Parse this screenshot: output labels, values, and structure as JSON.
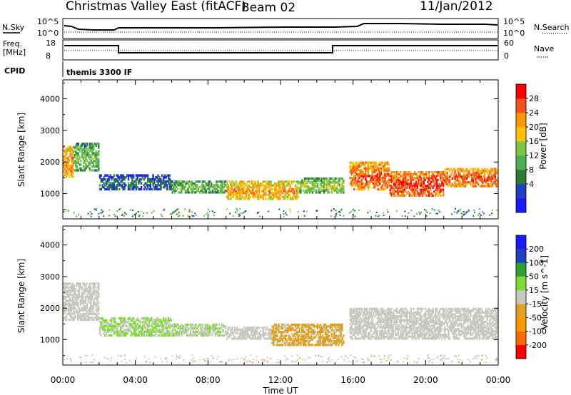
{
  "header": {
    "title": "Christmas Valley East (fitACF)",
    "beam": "Beam 02",
    "date": "11/Jan/2012"
  },
  "aux_panels": {
    "nsky_label": "N.Sky",
    "nsky_ticks": [
      "10^5",
      "10^0"
    ],
    "nsearch_label": "N.Search",
    "nsearch_ticks": [
      "10^5",
      "10^0"
    ],
    "freq_label": "Freq.",
    "freq_unit": "[MHz]",
    "freq_ticks": [
      "18",
      "8"
    ],
    "nave_label": "Nave",
    "nave_ticks": [
      "60",
      "0"
    ],
    "cpid_label": "CPID",
    "cpid_value": "themis 3300 IF"
  },
  "colors": {
    "power": [
      "#1a1aff",
      "#2040c0",
      "#2e7d32",
      "#4caf50",
      "#7cc940",
      "#ffc107",
      "#ff9800",
      "#f4511e",
      "#ff0000"
    ],
    "velocity": [
      "#ff0000",
      "#ff6a00",
      "#ff9800",
      "#e0a020",
      "#c8c8c0",
      "#7cdd30",
      "#30a030",
      "#2040c0",
      "#1a1aff"
    ]
  },
  "chart_data": [
    {
      "type": "heatmap",
      "name": "power",
      "ylabel": "Slant Range [km]",
      "yticks": [
        "4000",
        "3000",
        "2000",
        "1000"
      ],
      "ylim": [
        200,
        4600
      ],
      "xlim": [
        0,
        24
      ],
      "colorbar": {
        "label": "Power [dB]",
        "ticks": [
          "28",
          "24",
          "20",
          "16",
          "12",
          "8",
          "4"
        ],
        "range": [
          0,
          32
        ]
      },
      "bands": [
        {
          "t_start": 0.0,
          "t_end": 0.6,
          "r_low": 1500,
          "r_high": 2500,
          "mean_db": 22
        },
        {
          "t_start": 0.6,
          "t_end": 2.0,
          "r_low": 1700,
          "r_high": 2600,
          "mean_db": 12
        },
        {
          "t_start": 2.0,
          "t_end": 6.0,
          "r_low": 1100,
          "r_high": 1600,
          "mean_db": 6
        },
        {
          "t_start": 6.0,
          "t_end": 9.0,
          "r_low": 1000,
          "r_high": 1400,
          "mean_db": 12
        },
        {
          "t_start": 9.0,
          "t_end": 13.0,
          "r_low": 800,
          "r_high": 1400,
          "mean_db": 20
        },
        {
          "t_start": 13.0,
          "t_end": 15.5,
          "r_low": 1000,
          "r_high": 1500,
          "mean_db": 14
        },
        {
          "t_start": 15.8,
          "t_end": 18.0,
          "r_low": 1100,
          "r_high": 2000,
          "mean_db": 24
        },
        {
          "t_start": 18.0,
          "t_end": 21.0,
          "r_low": 900,
          "r_high": 1700,
          "mean_db": 26
        },
        {
          "t_start": 21.0,
          "t_end": 24.0,
          "r_low": 1200,
          "r_high": 1800,
          "mean_db": 24
        }
      ]
    },
    {
      "type": "heatmap",
      "name": "velocity",
      "xlabel": "Time UT",
      "ylabel": "Slant Range [km]",
      "xticks": [
        "00:00",
        "04:00",
        "08:00",
        "12:00",
        "16:00",
        "20:00",
        "00:00"
      ],
      "yticks": [
        "4000",
        "3000",
        "2000",
        "1000"
      ],
      "ylim": [
        200,
        4600
      ],
      "xlim": [
        0,
        24
      ],
      "colorbar": {
        "label": "Velocity [m s^-1]",
        "ticks": [
          "200",
          "100",
          "50",
          "15",
          "-15",
          "-50",
          "-100",
          "-200"
        ],
        "range": [
          -250,
          250
        ]
      },
      "bands": [
        {
          "t_start": 0.0,
          "t_end": 2.0,
          "r_low": 1600,
          "r_high": 2800,
          "mean_vel": 0
        },
        {
          "t_start": 2.0,
          "t_end": 6.0,
          "r_low": 1100,
          "r_high": 1700,
          "mean_vel": 30
        },
        {
          "t_start": 6.0,
          "t_end": 9.0,
          "r_low": 1100,
          "r_high": 1500,
          "mean_vel": 25
        },
        {
          "t_start": 9.0,
          "t_end": 11.5,
          "r_low": 1000,
          "r_high": 1400,
          "mean_vel": 0
        },
        {
          "t_start": 11.5,
          "t_end": 15.5,
          "r_low": 800,
          "r_high": 1500,
          "mean_vel": -40
        },
        {
          "t_start": 15.8,
          "t_end": 24.0,
          "r_low": 1000,
          "r_high": 2000,
          "mean_vel": 0
        }
      ]
    }
  ]
}
